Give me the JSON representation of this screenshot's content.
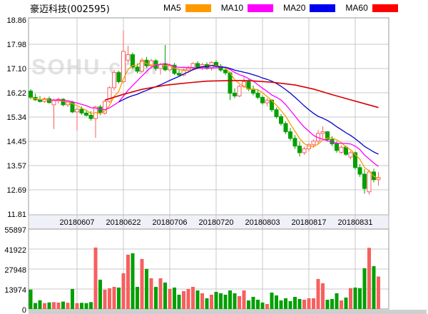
{
  "header": {
    "title": "豪迈科技(002595)"
  },
  "watermark": "SOHU.com",
  "legend": {
    "items": [
      {
        "label": "MA5",
        "color": "#ff9900"
      },
      {
        "label": "MA10",
        "color": "#ff00ff"
      },
      {
        "label": "MA20",
        "color": "#0000ee"
      },
      {
        "label": "MA60",
        "color": "#ff0000"
      }
    ]
  },
  "chart_data": {
    "type": "candlestick+volume",
    "title": "豪迈科技(002595)",
    "price_axis": {
      "max": 18.86,
      "min": 11.81,
      "tick_labels": [
        "18.86",
        "17.98",
        "17.10",
        "16.22",
        "15.34",
        "14.45",
        "13.57",
        "12.69",
        "11.81"
      ]
    },
    "volume_axis": {
      "max": 55897,
      "tick_labels": [
        "55897",
        "41922",
        "27948",
        "13974",
        "0"
      ]
    },
    "x_ticks": [
      {
        "label": "20180607",
        "index": 10
      },
      {
        "label": "20180622",
        "index": 20
      },
      {
        "label": "20180706",
        "index": 30
      },
      {
        "label": "20180720",
        "index": 40
      },
      {
        "label": "20180803",
        "index": 50
      },
      {
        "label": "20180817",
        "index": 60
      },
      {
        "label": "20180831",
        "index": 70
      }
    ],
    "colors": {
      "up": "#f85f5f",
      "down": "#00a000",
      "ma5": "#ff9900",
      "ma10": "#ff00ff",
      "ma20": "#0000cc",
      "ma60": "#d80000",
      "grid": "#c9c9c9",
      "frame": "#9a9a9a",
      "band_bg": "#f0f1f8",
      "strip": "#cfcfcf"
    },
    "candles_format": [
      "open",
      "high",
      "low",
      "close",
      "volume"
    ],
    "candles": [
      [
        16.28,
        16.35,
        15.98,
        16.05,
        13600
      ],
      [
        16.05,
        16.18,
        15.92,
        15.96,
        4200
      ],
      [
        15.96,
        16.1,
        15.86,
        15.9,
        6100
      ],
      [
        15.9,
        16.05,
        15.85,
        16.0,
        4100
      ],
      [
        16.0,
        16.08,
        15.82,
        15.86,
        4600
      ],
      [
        15.78,
        16.0,
        14.9,
        15.94,
        4800
      ],
      [
        15.94,
        16.04,
        15.82,
        15.98,
        4500
      ],
      [
        15.98,
        16.02,
        15.72,
        15.78,
        5200
      ],
      [
        15.78,
        15.95,
        15.7,
        15.88,
        4400
      ],
      [
        15.88,
        15.92,
        15.48,
        15.52,
        14000
      ],
      [
        15.52,
        15.7,
        14.85,
        15.62,
        4100
      ],
      [
        15.62,
        15.72,
        15.42,
        15.48,
        4300
      ],
      [
        15.48,
        15.6,
        15.35,
        15.4,
        4100
      ],
      [
        15.4,
        15.55,
        15.2,
        15.28,
        4800
      ],
      [
        15.28,
        15.75,
        14.58,
        15.7,
        43000
      ],
      [
        15.7,
        15.78,
        15.4,
        15.48,
        20500
      ],
      [
        15.48,
        15.95,
        15.42,
        15.9,
        13500
      ],
      [
        15.9,
        16.45,
        15.85,
        16.4,
        14500
      ],
      [
        16.4,
        17.05,
        16.3,
        16.95,
        15500
      ],
      [
        16.95,
        17.0,
        16.55,
        16.62,
        15000
      ],
      [
        16.62,
        18.48,
        16.55,
        17.72,
        25000
      ],
      [
        17.4,
        17.92,
        17.3,
        17.6,
        38000
      ],
      [
        17.6,
        17.68,
        17.08,
        17.15,
        39000
      ],
      [
        17.15,
        17.28,
        16.92,
        17.0,
        15500
      ],
      [
        17.0,
        17.48,
        16.95,
        17.4,
        35000
      ],
      [
        17.4,
        17.52,
        17.12,
        17.2,
        28000
      ],
      [
        17.2,
        17.45,
        17.1,
        17.38,
        21500
      ],
      [
        17.38,
        17.44,
        17.02,
        17.1,
        15500
      ],
      [
        17.1,
        17.3,
        16.88,
        17.25,
        21500
      ],
      [
        17.25,
        17.95,
        17.0,
        17.05,
        18500
      ],
      [
        17.05,
        17.28,
        16.98,
        17.22,
        14000
      ],
      [
        17.22,
        17.3,
        16.86,
        16.92,
        15000
      ],
      [
        16.92,
        17.05,
        16.8,
        16.86,
        10000
      ],
      [
        16.86,
        17.1,
        16.82,
        17.05,
        12500
      ],
      [
        17.05,
        17.2,
        16.95,
        17.14,
        14000
      ],
      [
        17.14,
        17.32,
        17.02,
        17.28,
        15500
      ],
      [
        17.28,
        17.36,
        17.08,
        17.14,
        13000
      ],
      [
        17.14,
        17.3,
        17.04,
        17.24,
        11000
      ],
      [
        17.24,
        17.32,
        17.05,
        17.1,
        7500
      ],
      [
        17.1,
        17.36,
        17.02,
        17.32,
        10000
      ],
      [
        17.32,
        17.4,
        17.12,
        17.18,
        12000
      ],
      [
        17.18,
        17.26,
        16.98,
        17.04,
        11000
      ],
      [
        17.04,
        17.16,
        16.86,
        16.94,
        10000
      ],
      [
        16.94,
        16.98,
        15.95,
        16.2,
        13000
      ],
      [
        16.2,
        16.38,
        16.02,
        16.1,
        11000
      ],
      [
        16.1,
        16.5,
        16.06,
        16.45,
        9000
      ],
      [
        16.45,
        16.8,
        16.38,
        16.62,
        13000
      ],
      [
        16.62,
        16.7,
        16.28,
        16.35,
        6000
      ],
      [
        16.35,
        16.48,
        16.12,
        16.2,
        8500
      ],
      [
        16.2,
        16.32,
        15.98,
        16.05,
        6500
      ],
      [
        16.05,
        16.12,
        15.78,
        15.85,
        4500
      ],
      [
        15.85,
        16.02,
        15.72,
        15.95,
        3500
      ],
      [
        15.95,
        15.98,
        15.52,
        15.6,
        11500
      ],
      [
        15.6,
        15.68,
        15.28,
        15.35,
        9500
      ],
      [
        15.35,
        15.44,
        15.02,
        15.1,
        6000
      ],
      [
        15.1,
        15.18,
        14.72,
        14.8,
        7500
      ],
      [
        14.8,
        14.94,
        14.48,
        14.56,
        5500
      ],
      [
        14.56,
        14.68,
        14.18,
        14.28,
        8500
      ],
      [
        14.28,
        14.44,
        13.9,
        14.04,
        7000
      ],
      [
        14.04,
        14.26,
        13.96,
        14.18,
        6500
      ],
      [
        14.18,
        14.4,
        14.08,
        14.33,
        7500
      ],
      [
        14.33,
        14.52,
        14.22,
        14.46,
        7500
      ],
      [
        14.46,
        14.86,
        14.36,
        14.74,
        21000
      ],
      [
        14.74,
        15.0,
        14.56,
        14.8,
        18000
      ],
      [
        14.8,
        14.82,
        14.44,
        14.52,
        6500
      ],
      [
        14.52,
        14.64,
        14.28,
        14.36,
        7000
      ],
      [
        14.36,
        14.46,
        14.04,
        14.12,
        11000
      ],
      [
        14.05,
        14.3,
        14.0,
        14.24,
        6000
      ],
      [
        14.24,
        14.3,
        13.92,
        13.98,
        8000
      ],
      [
        13.88,
        14.1,
        13.8,
        14.04,
        14600
      ],
      [
        14.04,
        14.08,
        13.42,
        13.5,
        15000
      ],
      [
        13.5,
        13.62,
        13.16,
        13.26,
        14600
      ],
      [
        13.26,
        13.45,
        12.55,
        12.74,
        28500
      ],
      [
        12.62,
        13.42,
        12.52,
        13.34,
        42800
      ],
      [
        13.34,
        13.46,
        12.96,
        13.06,
        30000
      ],
      [
        13.06,
        13.34,
        12.84,
        13.14,
        22700
      ]
    ],
    "ma60_points": [
      [
        16,
        15.95
      ],
      [
        20,
        16.16
      ],
      [
        24,
        16.34
      ],
      [
        29,
        16.49
      ],
      [
        34,
        16.58
      ],
      [
        38,
        16.64
      ],
      [
        43,
        16.66
      ],
      [
        47,
        16.66
      ],
      [
        52,
        16.6
      ],
      [
        57,
        16.5
      ],
      [
        61,
        16.35
      ],
      [
        65,
        16.15
      ],
      [
        69,
        15.96
      ],
      [
        72,
        15.82
      ],
      [
        75,
        15.68
      ]
    ]
  }
}
